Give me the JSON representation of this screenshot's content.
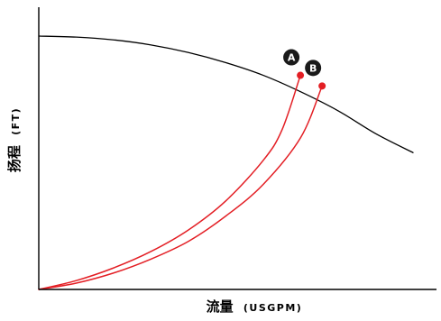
{
  "chart_data": {
    "type": "line",
    "xlabel": "流量",
    "xlabel_unit": "(USGPM)",
    "ylabel": "扬程",
    "ylabel_unit": "(FT)",
    "grid": false,
    "legend": "none",
    "xlim": [
      0,
      100
    ],
    "ylim": [
      0,
      100
    ],
    "series": [
      {
        "kind": "pump-curve",
        "color": "#000000",
        "x": [
          0,
          10,
          20,
          30,
          40,
          50,
          60,
          70,
          80,
          90,
          100
        ],
        "y": [
          100,
          99.6,
          98.5,
          96.5,
          93.5,
          89.5,
          84.5,
          78,
          70.5,
          61.5,
          54
        ]
      },
      {
        "kind": "system-curve",
        "marker": "A",
        "color": "#e31e24",
        "x": [
          0,
          10,
          20,
          30,
          40,
          50,
          60,
          65,
          69.9
        ],
        "y": [
          0,
          3.5,
          8.5,
          15,
          23.5,
          35,
          51,
          63,
          84.5
        ]
      },
      {
        "kind": "system-curve",
        "marker": "B",
        "color": "#e31e24",
        "x": [
          0,
          10,
          20,
          30,
          40,
          50,
          60,
          70,
          75.7
        ],
        "y": [
          0,
          2.5,
          6.5,
          12,
          19,
          29,
          41.5,
          60,
          80.3
        ]
      }
    ],
    "points": [
      {
        "label": "A",
        "x": 69.9,
        "y": 84.5,
        "color": "#e31e24"
      },
      {
        "label": "B",
        "x": 75.7,
        "y": 80.3,
        "color": "#e31e24"
      }
    ]
  }
}
